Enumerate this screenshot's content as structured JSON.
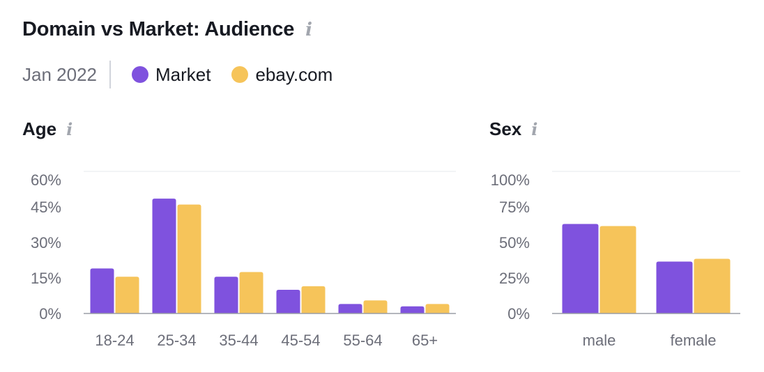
{
  "header": {
    "title": "Domain vs Market: Audience",
    "info_icon": "info-icon"
  },
  "legend": {
    "date": "Jan 2022",
    "items": [
      {
        "label": "Market",
        "color": "#7f52de"
      },
      {
        "label": "ebay.com",
        "color": "#f6c45a"
      }
    ]
  },
  "chart_data": [
    {
      "type": "bar",
      "title": "Age",
      "categories": [
        "18-24",
        "25-34",
        "35-44",
        "45-54",
        "55-64",
        "65+"
      ],
      "series": [
        {
          "name": "Market",
          "values": [
            19,
            48.5,
            15.5,
            10,
            4,
            3
          ]
        },
        {
          "name": "ebay.com",
          "values": [
            15.5,
            46,
            17.5,
            11.5,
            5.5,
            4
          ]
        }
      ],
      "ylim": [
        0,
        60
      ],
      "yticks": [
        0,
        15,
        30,
        45,
        60
      ],
      "ytick_labels": [
        "0%",
        "15%",
        "30%",
        "45%",
        "60%"
      ],
      "grid": false
    },
    {
      "type": "bar",
      "title": "Sex",
      "categories": [
        "male",
        "female"
      ],
      "series": [
        {
          "name": "Market",
          "values": [
            63,
            36.5
          ]
        },
        {
          "name": "ebay.com",
          "values": [
            61.5,
            38.5
          ]
        }
      ],
      "ylim": [
        0,
        100
      ],
      "yticks": [
        0,
        25,
        50,
        75,
        100
      ],
      "ytick_labels": [
        "0%",
        "25%",
        "50%",
        "75%",
        "100%"
      ],
      "grid": false
    }
  ]
}
